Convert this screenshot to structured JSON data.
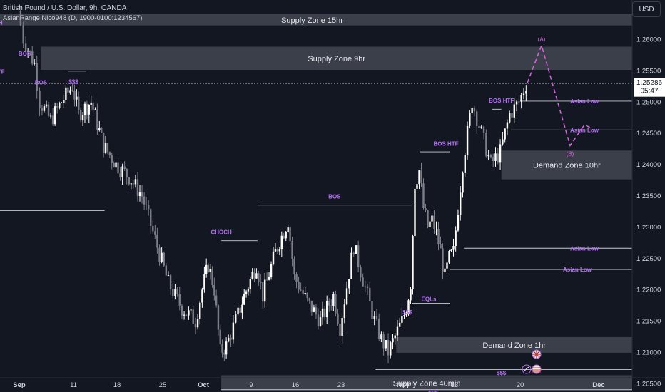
{
  "header": {
    "symbol_line": "British Pound / U.S. Dollar, 9h, OANDA",
    "indicator_line": "AsianRange Nico948 (D, 1900-0100:1234567)"
  },
  "currency_button": "USD",
  "price_label": {
    "price": "1.25286",
    "countdown": "05:47"
  },
  "colors": {
    "background": "#131722",
    "bull_candle": "#ffffff",
    "bear_candle": "#7b7e86",
    "zone_fill": "#5d606b",
    "structure_label": "#b46ef5",
    "axis_text": "#d1d4dc",
    "projection": "#d160d8"
  },
  "chart_data": {
    "type": "candlestick",
    "symbol": "GBPUSD",
    "interval": "9h",
    "y_axis": {
      "range": [
        1.2028,
        1.2655
      ],
      "ticks": [
        "1.26000",
        "1.25500",
        "1.25000",
        "1.24500",
        "1.24000",
        "1.23500",
        "1.23000",
        "1.22500",
        "1.22000",
        "1.21500",
        "1.21000",
        "1.20500"
      ],
      "current_price": 1.25286
    },
    "x_axis": {
      "ticks": [
        {
          "label": "Sep",
          "date": "2022-09-01"
        },
        {
          "label": "11",
          "date": "2022-09-11"
        },
        {
          "label": "18",
          "date": "2022-09-18"
        },
        {
          "label": "25",
          "date": "2022-09-25"
        },
        {
          "label": "Oct",
          "date": "2022-10-01"
        },
        {
          "label": "9",
          "date": "2022-10-09"
        },
        {
          "label": "16",
          "date": "2022-10-16"
        },
        {
          "label": "23",
          "date": "2022-10-23"
        },
        {
          "label": "Nov",
          "date": "2022-11-01"
        },
        {
          "label": "13",
          "date": "2022-11-13"
        },
        {
          "label": "20",
          "date": "2022-11-20"
        },
        {
          "label": "Dec",
          "date": "2022-12-01"
        }
      ]
    },
    "price_path": [
      {
        "date": "2022-09-01",
        "price": 1.2645
      },
      {
        "date": "2022-09-02",
        "price": 1.26
      },
      {
        "date": "2022-09-04",
        "price": 1.256
      },
      {
        "date": "2022-09-05",
        "price": 1.25
      },
      {
        "date": "2022-09-07",
        "price": 1.247
      },
      {
        "date": "2022-09-09",
        "price": 1.25
      },
      {
        "date": "2022-09-11",
        "price": 1.2525
      },
      {
        "date": "2022-09-12",
        "price": 1.248
      },
      {
        "date": "2022-09-14",
        "price": 1.25
      },
      {
        "date": "2022-09-16",
        "price": 1.243
      },
      {
        "date": "2022-09-18",
        "price": 1.24
      },
      {
        "date": "2022-09-20",
        "price": 1.238
      },
      {
        "date": "2022-09-22",
        "price": 1.235
      },
      {
        "date": "2022-09-24",
        "price": 1.228
      },
      {
        "date": "2022-09-26",
        "price": 1.221
      },
      {
        "date": "2022-09-28",
        "price": 1.217
      },
      {
        "date": "2022-09-30",
        "price": 1.215
      },
      {
        "date": "2022-10-01",
        "price": 1.22
      },
      {
        "date": "2022-10-02",
        "price": 1.224
      },
      {
        "date": "2022-10-03",
        "price": 1.22
      },
      {
        "date": "2022-10-04",
        "price": 1.21
      },
      {
        "date": "2022-10-05",
        "price": 1.211
      },
      {
        "date": "2022-10-07",
        "price": 1.216
      },
      {
        "date": "2022-10-08",
        "price": 1.219
      },
      {
        "date": "2022-10-10",
        "price": 1.224
      },
      {
        "date": "2022-10-11",
        "price": 1.219
      },
      {
        "date": "2022-10-13",
        "price": 1.226
      },
      {
        "date": "2022-10-15",
        "price": 1.231
      },
      {
        "date": "2022-10-16",
        "price": 1.222
      },
      {
        "date": "2022-10-18",
        "price": 1.218
      },
      {
        "date": "2022-10-20",
        "price": 1.215
      },
      {
        "date": "2022-10-22",
        "price": 1.219
      },
      {
        "date": "2022-10-23",
        "price": 1.214
      },
      {
        "date": "2022-10-25",
        "price": 1.227
      },
      {
        "date": "2022-10-27",
        "price": 1.219
      },
      {
        "date": "2022-10-28",
        "price": 1.215
      },
      {
        "date": "2022-10-29",
        "price": 1.212
      },
      {
        "date": "2022-10-30",
        "price": 1.21
      },
      {
        "date": "2022-11-01",
        "price": 1.215
      },
      {
        "date": "2022-11-02",
        "price": 1.217
      },
      {
        "date": "2022-11-03",
        "price": 1.221
      },
      {
        "date": "2022-11-04",
        "price": 1.237
      },
      {
        "date": "2022-11-05",
        "price": 1.239
      },
      {
        "date": "2022-11-06",
        "price": 1.233
      },
      {
        "date": "2022-11-07",
        "price": 1.23
      },
      {
        "date": "2022-11-08",
        "price": 1.231
      },
      {
        "date": "2022-11-09",
        "price": 1.229
      },
      {
        "date": "2022-11-10",
        "price": 1.226
      },
      {
        "date": "2022-11-11",
        "price": 1.222
      },
      {
        "date": "2022-11-12",
        "price": 1.225
      },
      {
        "date": "2022-11-13",
        "price": 1.226
      },
      {
        "date": "2022-11-14",
        "price": 1.24
      },
      {
        "date": "2022-11-15",
        "price": 1.25
      },
      {
        "date": "2022-11-16",
        "price": 1.245
      },
      {
        "date": "2022-11-17",
        "price": 1.24
      },
      {
        "date": "2022-11-18",
        "price": 1.242
      },
      {
        "date": "2022-11-19",
        "price": 1.248
      },
      {
        "date": "2022-11-20",
        "price": 1.25
      },
      {
        "date": "2022-11-21",
        "price": 1.2528
      }
    ],
    "zones": [
      {
        "label": "Supply Zone 15hr",
        "from_date": "2022-08-27",
        "to_date": "2022-12-06",
        "price_top": 1.264,
        "price_bottom": 1.2622
      },
      {
        "label": "Supply Zone 9hr",
        "from_date": "2022-09-05",
        "to_date": "2022-12-06",
        "price_top": 1.2588,
        "price_bottom": 1.2551
      },
      {
        "label": "Demand Zone 10hr",
        "from_date": "2022-11-18",
        "to_date": "2022-12-06",
        "price_top": 1.2422,
        "price_bottom": 1.2376
      },
      {
        "label": "Demand Zone 1hr",
        "from_date": "2022-10-31",
        "to_date": "2022-12-06",
        "price_top": 1.2124,
        "price_bottom": 1.2099
      },
      {
        "label": "Supply Zone 40min",
        "from_date": "2022-10-04",
        "to_date": "2022-12-06",
        "price_top": 1.2063,
        "price_bottom": 1.2038
      }
    ],
    "annotations": [
      {
        "label": "CHOCH",
        "date": "2022-08-27",
        "price": 1.2627
      },
      {
        "label": "BOS",
        "date": "2022-09-02",
        "price": 1.2577
      },
      {
        "label": "BOS HTF",
        "date": "2022-08-27",
        "price": 1.2548
      },
      {
        "label": "BOS",
        "date": "2022-09-05",
        "price": 1.2531
      },
      {
        "label": "$$$",
        "date": "2022-09-11",
        "price": 1.2532
      },
      {
        "label": "BOS",
        "date": "2022-10-22",
        "price": 1.2349
      },
      {
        "label": "CHOCH",
        "date": "2022-10-04",
        "price": 1.2292
      },
      {
        "label": "BOS HTF",
        "date": "2022-11-11",
        "price": 1.2433
      },
      {
        "label": "EQLs",
        "date": "2022-11-07",
        "price": 1.2185
      },
      {
        "label": "$$$",
        "date": "2022-11-02",
        "price": 1.2164
      },
      {
        "label": "BOS HTF",
        "date": "2022-11-18",
        "price": 1.2502
      },
      {
        "label": "Asian Low",
        "date": "2022-11-29",
        "price": 1.2501
      },
      {
        "label": "Asian Low",
        "date": "2022-11-29",
        "price": 1.2455
      },
      {
        "label": "Asian Low",
        "date": "2022-11-29",
        "price": 1.2266
      },
      {
        "label": "Asian Low",
        "date": "2022-11-28",
        "price": 1.2232
      },
      {
        "label": "$$$",
        "date": "2022-11-18",
        "price": 1.2067
      },
      {
        "label": "$$$",
        "date": "2022-11-08",
        "price": 1.2035
      }
    ],
    "levels": [
      {
        "from_date": "2022-08-27",
        "to_date": "2022-09-16",
        "price": 1.2326
      },
      {
        "from_date": "2022-10-10",
        "to_date": "2022-11-03",
        "price": 1.2335
      },
      {
        "from_date": "2022-10-04",
        "to_date": "2022-10-10",
        "price": 1.2278
      },
      {
        "from_date": "2022-11-05",
        "to_date": "2022-11-12",
        "price": 1.242
      },
      {
        "from_date": "2022-11-17",
        "to_date": "2022-11-18",
        "price": 1.2488
      },
      {
        "from_date": "2022-11-20",
        "to_date": "2022-12-06",
        "price": 1.2501
      },
      {
        "from_date": "2022-11-19",
        "to_date": "2022-12-06",
        "price": 1.2455
      },
      {
        "from_date": "2022-11-14",
        "to_date": "2022-12-06",
        "price": 1.2266
      },
      {
        "from_date": "2022-11-12",
        "to_date": "2022-12-06",
        "price": 1.2232
      },
      {
        "from_date": "2022-11-03",
        "to_date": "2022-11-12",
        "price": 1.2178
      },
      {
        "from_date": "2022-10-28",
        "to_date": "2022-12-06",
        "price": 1.2072
      },
      {
        "from_date": "2022-10-04",
        "to_date": "2022-12-06",
        "price": 1.204
      },
      {
        "from_date": "2022-09-10",
        "to_date": "2022-09-13",
        "price": 1.2549
      }
    ],
    "projection": {
      "points": [
        {
          "label": "(A)",
          "date": "2022-11-23",
          "price": 1.259
        },
        {
          "label": "(B)",
          "date": "2022-11-27",
          "price": 1.243
        }
      ],
      "path": [
        {
          "date": "2022-11-21",
          "price": 1.253
        },
        {
          "date": "2022-11-23",
          "price": 1.259
        },
        {
          "date": "2022-11-27",
          "price": 1.243
        },
        {
          "date": "2022-11-29",
          "price": 1.2463
        },
        {
          "date": "2022-11-30",
          "price": 1.2458
        }
      ]
    }
  }
}
